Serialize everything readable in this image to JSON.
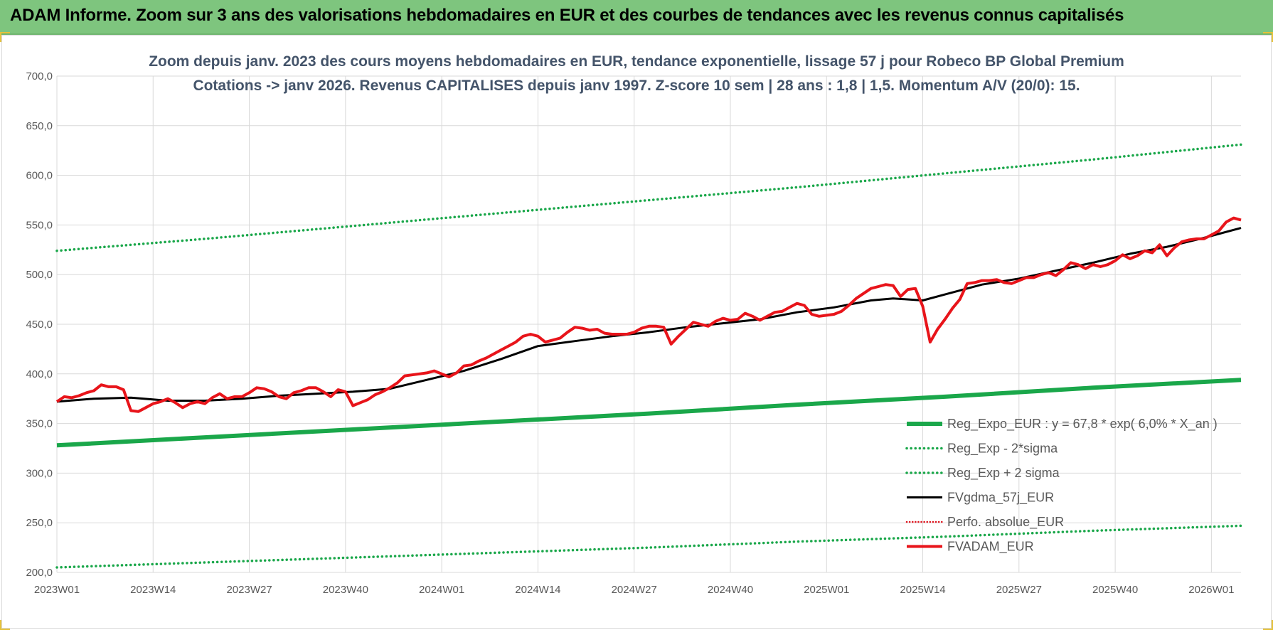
{
  "header": {
    "title": "ADAM Informe. Zoom sur 3 ans des valorisations hebdomadaires en EUR et des courbes de tendances avec les revenus connus capitalisés"
  },
  "chart_data": {
    "type": "line",
    "title_lines": [
      "Zoom depuis janv. 2023 des cours moyens hebdomadaires en EUR, tendance exponentielle, lissage 57 j pour Robeco BP Global Premium",
      "Cotations -> janv 2026. Revenus CAPITALISES depuis janv 1997. Z-score 10 sem | 28 ans : 1,8 | 1,5. Momentum A/V (20/0): 15."
    ],
    "xlabel": "",
    "ylabel": "",
    "ylim": [
      200,
      700
    ],
    "y_ticks": [
      "700,0",
      "650,0",
      "600,0",
      "550,0",
      "500,0",
      "450,0",
      "400,0",
      "350,0",
      "300,0",
      "250,0",
      "200,0"
    ],
    "y_tick_values": [
      700,
      650,
      600,
      550,
      500,
      450,
      400,
      350,
      300,
      250,
      200
    ],
    "x_range": [
      0,
      160
    ],
    "x_ticks": [
      "2023W01",
      "2023W14",
      "2023W27",
      "2023W40",
      "2024W01",
      "2024W14",
      "2024W27",
      "2024W40",
      "2025W01",
      "2025W14",
      "2025W27",
      "2025W40",
      "2026W01"
    ],
    "x_tick_positions": [
      0,
      13,
      26,
      39,
      52,
      65,
      78,
      91,
      104,
      117,
      130,
      143,
      156
    ],
    "grid": true,
    "legend_position": "bottom-right",
    "colors": {
      "trend": "#1aa74a",
      "band": "#1aa74a",
      "smooth": "#000000",
      "perf": "#e0141e",
      "fvadam": "#e8141a",
      "grid": "#d9d9d9",
      "title": "#44546a"
    },
    "series": [
      {
        "name": "Reg_Expo_EUR : y = 67,8 * exp( 6,0% *  X_an )",
        "style": "thick-solid",
        "x": [
          0,
          20,
          40,
          60,
          80,
          100,
          120,
          140,
          160
        ],
        "values": [
          328,
          336,
          344,
          352,
          360,
          369,
          377,
          386,
          394
        ]
      },
      {
        "name": "Reg_Exp - 2*sigma",
        "style": "dotted",
        "x": [
          0,
          20,
          40,
          60,
          80,
          100,
          120,
          140,
          160
        ],
        "values": [
          205,
          210,
          215,
          220,
          225,
          231,
          236,
          242,
          247
        ]
      },
      {
        "name": "Reg_Exp + 2 sigma",
        "style": "dotted",
        "x": [
          0,
          20,
          40,
          60,
          80,
          100,
          120,
          140,
          160
        ],
        "values": [
          524,
          536,
          549,
          562,
          575,
          588,
          602,
          616,
          631
        ]
      },
      {
        "name": "FVgdma_57j_EUR",
        "style": "solid",
        "x": [
          0,
          5,
          10,
          15,
          20,
          25,
          30,
          35,
          40,
          45,
          50,
          55,
          60,
          65,
          70,
          75,
          80,
          85,
          90,
          95,
          100,
          105,
          110,
          113,
          117,
          120,
          125,
          130,
          135,
          140,
          145,
          150,
          155,
          160
        ],
        "values": [
          372,
          375,
          376,
          373,
          373,
          375,
          378,
          380,
          382,
          385,
          394,
          403,
          415,
          428,
          433,
          438,
          442,
          447,
          451,
          455,
          462,
          467,
          474,
          476,
          474,
          480,
          490,
          496,
          504,
          512,
          521,
          528,
          537,
          547
        ]
      },
      {
        "name": "Perfo. absolue_EUR",
        "style": "dotted-red",
        "x": [],
        "values": []
      },
      {
        "name": "FVADAM_EUR",
        "style": "thick-solid-red",
        "x": [
          0,
          1,
          2,
          3,
          4,
          5,
          6,
          7,
          8,
          9,
          10,
          11,
          12,
          13,
          14,
          15,
          16,
          17,
          18,
          19,
          20,
          21,
          22,
          23,
          24,
          25,
          26,
          27,
          28,
          29,
          30,
          31,
          32,
          33,
          34,
          35,
          36,
          37,
          38,
          39,
          40,
          41,
          42,
          43,
          44,
          45,
          46,
          47,
          48,
          49,
          50,
          51,
          52,
          53,
          54,
          55,
          56,
          57,
          58,
          59,
          60,
          61,
          62,
          63,
          64,
          65,
          66,
          67,
          68,
          69,
          70,
          71,
          72,
          73,
          74,
          75,
          76,
          77,
          78,
          79,
          80,
          81,
          82,
          83,
          84,
          85,
          86,
          87,
          88,
          89,
          90,
          91,
          92,
          93,
          94,
          95,
          96,
          97,
          98,
          99,
          100,
          101,
          102,
          103,
          104,
          105,
          106,
          107,
          108,
          109,
          110,
          111,
          112,
          113,
          114,
          115,
          116,
          117,
          118,
          119,
          120,
          121,
          122,
          123,
          124,
          125,
          126,
          127,
          128,
          129,
          130,
          131,
          132,
          133,
          134,
          135,
          136,
          137,
          138,
          139,
          140,
          141,
          142,
          143,
          144,
          145,
          146,
          147,
          148,
          149,
          150,
          151,
          152,
          153,
          154,
          155,
          156,
          157,
          158,
          159,
          160
        ],
        "values": [
          372,
          377,
          376,
          378,
          381,
          383,
          389,
          387,
          387,
          384,
          363,
          362,
          366,
          370,
          372,
          375,
          371,
          366,
          370,
          372,
          370,
          376,
          380,
          375,
          377,
          377,
          381,
          386,
          385,
          382,
          377,
          375,
          381,
          383,
          386,
          386,
          382,
          377,
          384,
          382,
          368,
          371,
          374,
          379,
          382,
          386,
          391,
          398,
          399,
          400,
          401,
          403,
          400,
          397,
          401,
          408,
          409,
          413,
          416,
          420,
          424,
          428,
          432,
          438,
          440,
          438,
          432,
          434,
          436,
          442,
          447,
          446,
          444,
          445,
          441,
          440,
          440,
          440,
          442,
          446,
          448,
          448,
          447,
          430,
          438,
          445,
          452,
          450,
          448,
          453,
          456,
          454,
          455,
          461,
          458,
          454,
          458,
          462,
          463,
          467,
          471,
          469,
          460,
          458,
          459,
          460,
          463,
          469,
          476,
          481,
          486,
          488,
          490,
          489,
          478,
          485,
          486,
          468,
          432,
          445,
          455,
          466,
          475,
          491,
          492,
          494,
          494,
          495,
          492,
          491,
          494,
          497,
          497,
          500,
          502,
          499,
          505,
          512,
          510,
          506,
          510,
          508,
          510,
          514,
          520,
          516,
          519,
          524,
          522,
          530,
          519,
          527,
          533,
          535,
          536,
          536,
          540,
          544,
          553,
          557,
          555
        ]
      }
    ]
  }
}
